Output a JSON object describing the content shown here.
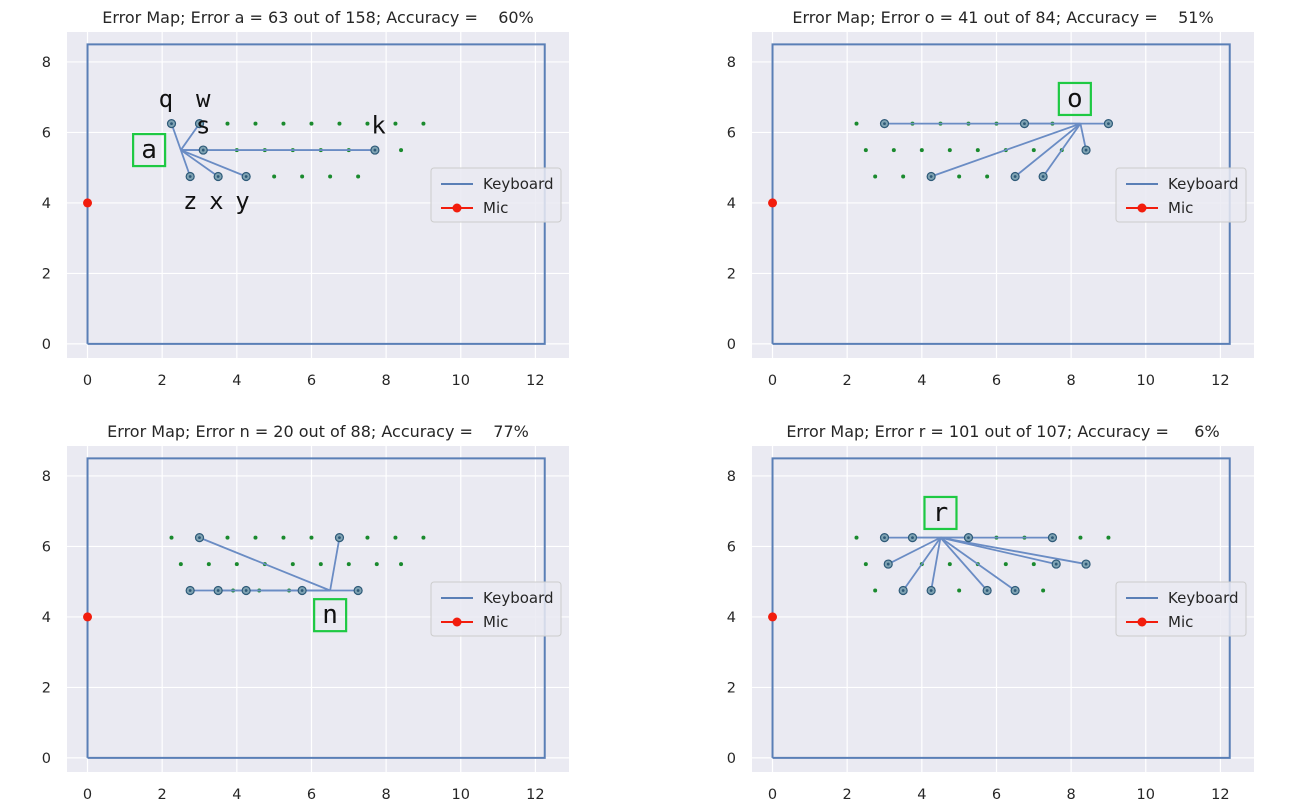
{
  "chart_data": [
    {
      "type": "scatter",
      "title": "Error Map; Error a = 63 out of 158; Accuracy =    60%",
      "xlim": [
        -0.55,
        12.9
      ],
      "ylim": [
        -0.4,
        8.85
      ],
      "xticks": [
        0,
        2,
        4,
        6,
        8,
        10,
        12
      ],
      "yticks": [
        0,
        2,
        4,
        6,
        8
      ],
      "grid": true,
      "legend_position": "right",
      "legend": [
        {
          "label": "Keyboard",
          "kind": "line"
        },
        {
          "label": "Mic",
          "kind": "marker-line"
        }
      ],
      "keyboard_outline": [
        [
          0,
          0
        ],
        [
          12.25,
          0
        ],
        [
          12.25,
          8.5
        ],
        [
          0,
          8.5
        ],
        [
          0,
          0
        ]
      ],
      "mic": [
        0,
        4
      ],
      "key_dots": [
        [
          3.75,
          6.25
        ],
        [
          4.5,
          6.25
        ],
        [
          5.25,
          6.25
        ],
        [
          6.0,
          6.25
        ],
        [
          6.75,
          6.25
        ],
        [
          7.5,
          6.25
        ],
        [
          8.25,
          6.25
        ],
        [
          9.0,
          6.25
        ],
        [
          4.0,
          5.5
        ],
        [
          4.75,
          5.5
        ],
        [
          5.5,
          5.5
        ],
        [
          6.25,
          5.5
        ],
        [
          7.0,
          5.5
        ],
        [
          8.4,
          5.5
        ],
        [
          5.0,
          4.75
        ],
        [
          5.75,
          4.75
        ],
        [
          6.5,
          4.75
        ],
        [
          7.25,
          4.75
        ]
      ],
      "target": {
        "key": "a",
        "pos": [
          2.5,
          5.5
        ],
        "label_pos": [
          1.65,
          5.5
        ]
      },
      "error_keys": [
        {
          "pos": [
            2.25,
            6.25
          ],
          "label": "q",
          "label_pos": [
            2.1,
            6.95
          ]
        },
        {
          "pos": [
            3.0,
            6.25
          ],
          "label": "w",
          "label_pos": [
            3.1,
            6.95
          ]
        },
        {
          "pos": [
            3.1,
            5.5
          ],
          "label": "s",
          "label_pos": [
            3.1,
            6.2
          ]
        },
        {
          "pos": [
            7.7,
            5.5
          ],
          "label": "k",
          "label_pos": [
            7.8,
            6.2
          ]
        },
        {
          "pos": [
            2.75,
            4.75
          ],
          "label": "z",
          "label_pos": [
            2.75,
            4.05
          ]
        },
        {
          "pos": [
            3.5,
            4.75
          ],
          "label": "x",
          "label_pos": [
            3.45,
            4.05
          ]
        },
        {
          "pos": [
            4.25,
            4.75
          ],
          "label": "y",
          "label_pos": [
            4.15,
            4.05
          ]
        }
      ]
    },
    {
      "type": "scatter",
      "title": "Error Map; Error o = 41 out of 84; Accuracy =    51%",
      "xlim": [
        -0.55,
        12.9
      ],
      "ylim": [
        -0.4,
        8.85
      ],
      "xticks": [
        0,
        2,
        4,
        6,
        8,
        10,
        12
      ],
      "yticks": [
        0,
        2,
        4,
        6,
        8
      ],
      "grid": true,
      "legend_position": "right",
      "legend": [
        {
          "label": "Keyboard",
          "kind": "line"
        },
        {
          "label": "Mic",
          "kind": "marker-line"
        }
      ],
      "keyboard_outline": [
        [
          0,
          0
        ],
        [
          12.25,
          0
        ],
        [
          12.25,
          8.5
        ],
        [
          0,
          8.5
        ],
        [
          0,
          0
        ]
      ],
      "mic": [
        0,
        4
      ],
      "key_dots": [
        [
          2.25,
          6.25
        ],
        [
          3.75,
          6.25
        ],
        [
          4.5,
          6.25
        ],
        [
          5.25,
          6.25
        ],
        [
          6.0,
          6.25
        ],
        [
          7.5,
          6.25
        ],
        [
          2.5,
          5.5
        ],
        [
          3.25,
          5.5
        ],
        [
          4.0,
          5.5
        ],
        [
          4.75,
          5.5
        ],
        [
          5.5,
          5.5
        ],
        [
          6.25,
          5.5
        ],
        [
          7.0,
          5.5
        ],
        [
          7.75,
          5.5
        ],
        [
          2.75,
          4.75
        ],
        [
          3.5,
          4.75
        ],
        [
          5.0,
          4.75
        ],
        [
          5.75,
          4.75
        ]
      ],
      "target": {
        "key": "o",
        "pos": [
          8.25,
          6.25
        ],
        "label_pos": [
          8.1,
          6.95
        ]
      },
      "error_keys": [
        {
          "pos": [
            3.0,
            6.25
          ]
        },
        {
          "pos": [
            6.75,
            6.25
          ]
        },
        {
          "pos": [
            9.0,
            6.25
          ]
        },
        {
          "pos": [
            8.4,
            5.5
          ]
        },
        {
          "pos": [
            4.25,
            4.75
          ]
        },
        {
          "pos": [
            6.5,
            4.75
          ]
        },
        {
          "pos": [
            7.25,
            4.75
          ]
        }
      ]
    },
    {
      "type": "scatter",
      "title": "Error Map; Error n = 20 out of 88; Accuracy =    77%",
      "xlim": [
        -0.55,
        12.9
      ],
      "ylim": [
        -0.4,
        8.85
      ],
      "xticks": [
        0,
        2,
        4,
        6,
        8,
        10,
        12
      ],
      "yticks": [
        0,
        2,
        4,
        6,
        8
      ],
      "grid": true,
      "legend_position": "right",
      "legend": [
        {
          "label": "Keyboard",
          "kind": "line"
        },
        {
          "label": "Mic",
          "kind": "marker-line"
        }
      ],
      "keyboard_outline": [
        [
          0,
          0
        ],
        [
          12.25,
          0
        ],
        [
          12.25,
          8.5
        ],
        [
          0,
          8.5
        ],
        [
          0,
          0
        ]
      ],
      "mic": [
        0,
        4
      ],
      "key_dots": [
        [
          2.25,
          6.25
        ],
        [
          3.75,
          6.25
        ],
        [
          4.5,
          6.25
        ],
        [
          5.25,
          6.25
        ],
        [
          6.0,
          6.25
        ],
        [
          7.5,
          6.25
        ],
        [
          8.25,
          6.25
        ],
        [
          9.0,
          6.25
        ],
        [
          2.5,
          5.5
        ],
        [
          3.25,
          5.5
        ],
        [
          4.0,
          5.5
        ],
        [
          4.75,
          5.5
        ],
        [
          5.5,
          5.5
        ],
        [
          6.25,
          5.5
        ],
        [
          7.0,
          5.5
        ],
        [
          7.75,
          5.5
        ],
        [
          8.4,
          5.5
        ],
        [
          3.9,
          4.75
        ],
        [
          4.6,
          4.75
        ],
        [
          5.4,
          4.75
        ]
      ],
      "target": {
        "key": "n",
        "pos": [
          6.5,
          4.75
        ],
        "label_pos": [
          6.5,
          4.05
        ]
      },
      "error_keys": [
        {
          "pos": [
            3.0,
            6.25
          ]
        },
        {
          "pos": [
            6.75,
            6.25
          ]
        },
        {
          "pos": [
            2.75,
            4.75
          ]
        },
        {
          "pos": [
            3.5,
            4.75
          ]
        },
        {
          "pos": [
            4.25,
            4.75
          ]
        },
        {
          "pos": [
            5.75,
            4.75
          ]
        },
        {
          "pos": [
            7.25,
            4.75
          ]
        }
      ]
    },
    {
      "type": "scatter",
      "title": "Error Map; Error r = 101 out of 107; Accuracy =     6%",
      "xlim": [
        -0.55,
        12.9
      ],
      "ylim": [
        -0.4,
        8.85
      ],
      "xticks": [
        0,
        2,
        4,
        6,
        8,
        10,
        12
      ],
      "yticks": [
        0,
        2,
        4,
        6,
        8
      ],
      "grid": true,
      "legend_position": "right",
      "legend": [
        {
          "label": "Keyboard",
          "kind": "line"
        },
        {
          "label": "Mic",
          "kind": "marker-line"
        }
      ],
      "keyboard_outline": [
        [
          0,
          0
        ],
        [
          12.25,
          0
        ],
        [
          12.25,
          8.5
        ],
        [
          0,
          8.5
        ],
        [
          0,
          0
        ]
      ],
      "mic": [
        0,
        4
      ],
      "key_dots": [
        [
          2.25,
          6.25
        ],
        [
          6.0,
          6.25
        ],
        [
          6.75,
          6.25
        ],
        [
          8.25,
          6.25
        ],
        [
          9.0,
          6.25
        ],
        [
          2.5,
          5.5
        ],
        [
          4.0,
          5.5
        ],
        [
          4.75,
          5.5
        ],
        [
          5.5,
          5.5
        ],
        [
          6.25,
          5.5
        ],
        [
          7.0,
          5.5
        ],
        [
          2.75,
          4.75
        ],
        [
          5.0,
          4.75
        ],
        [
          7.25,
          4.75
        ]
      ],
      "target": {
        "key": "r",
        "pos": [
          4.5,
          6.25
        ],
        "label_pos": [
          4.5,
          6.95
        ]
      },
      "error_keys": [
        {
          "pos": [
            3.0,
            6.25
          ]
        },
        {
          "pos": [
            3.75,
            6.25
          ]
        },
        {
          "pos": [
            5.25,
            6.25
          ]
        },
        {
          "pos": [
            7.5,
            6.25
          ]
        },
        {
          "pos": [
            3.1,
            5.5
          ]
        },
        {
          "pos": [
            7.6,
            5.5
          ]
        },
        {
          "pos": [
            8.4,
            5.5
          ]
        },
        {
          "pos": [
            3.5,
            4.75
          ]
        },
        {
          "pos": [
            4.25,
            4.75
          ]
        },
        {
          "pos": [
            5.75,
            4.75
          ]
        },
        {
          "pos": [
            6.5,
            4.75
          ]
        }
      ]
    }
  ],
  "colors": {
    "axes_bg": "#eaeaf2",
    "grid": "#ffffff",
    "keyboard_line": "#5a7fb6",
    "error_line": "#6a8cc4",
    "key_dot": "#1a8a2e",
    "mic": "#f21d0d",
    "target_box": "#1ec943",
    "error_marker_fill": "#7fa3b3",
    "error_marker_edge": "#2e5a78"
  }
}
